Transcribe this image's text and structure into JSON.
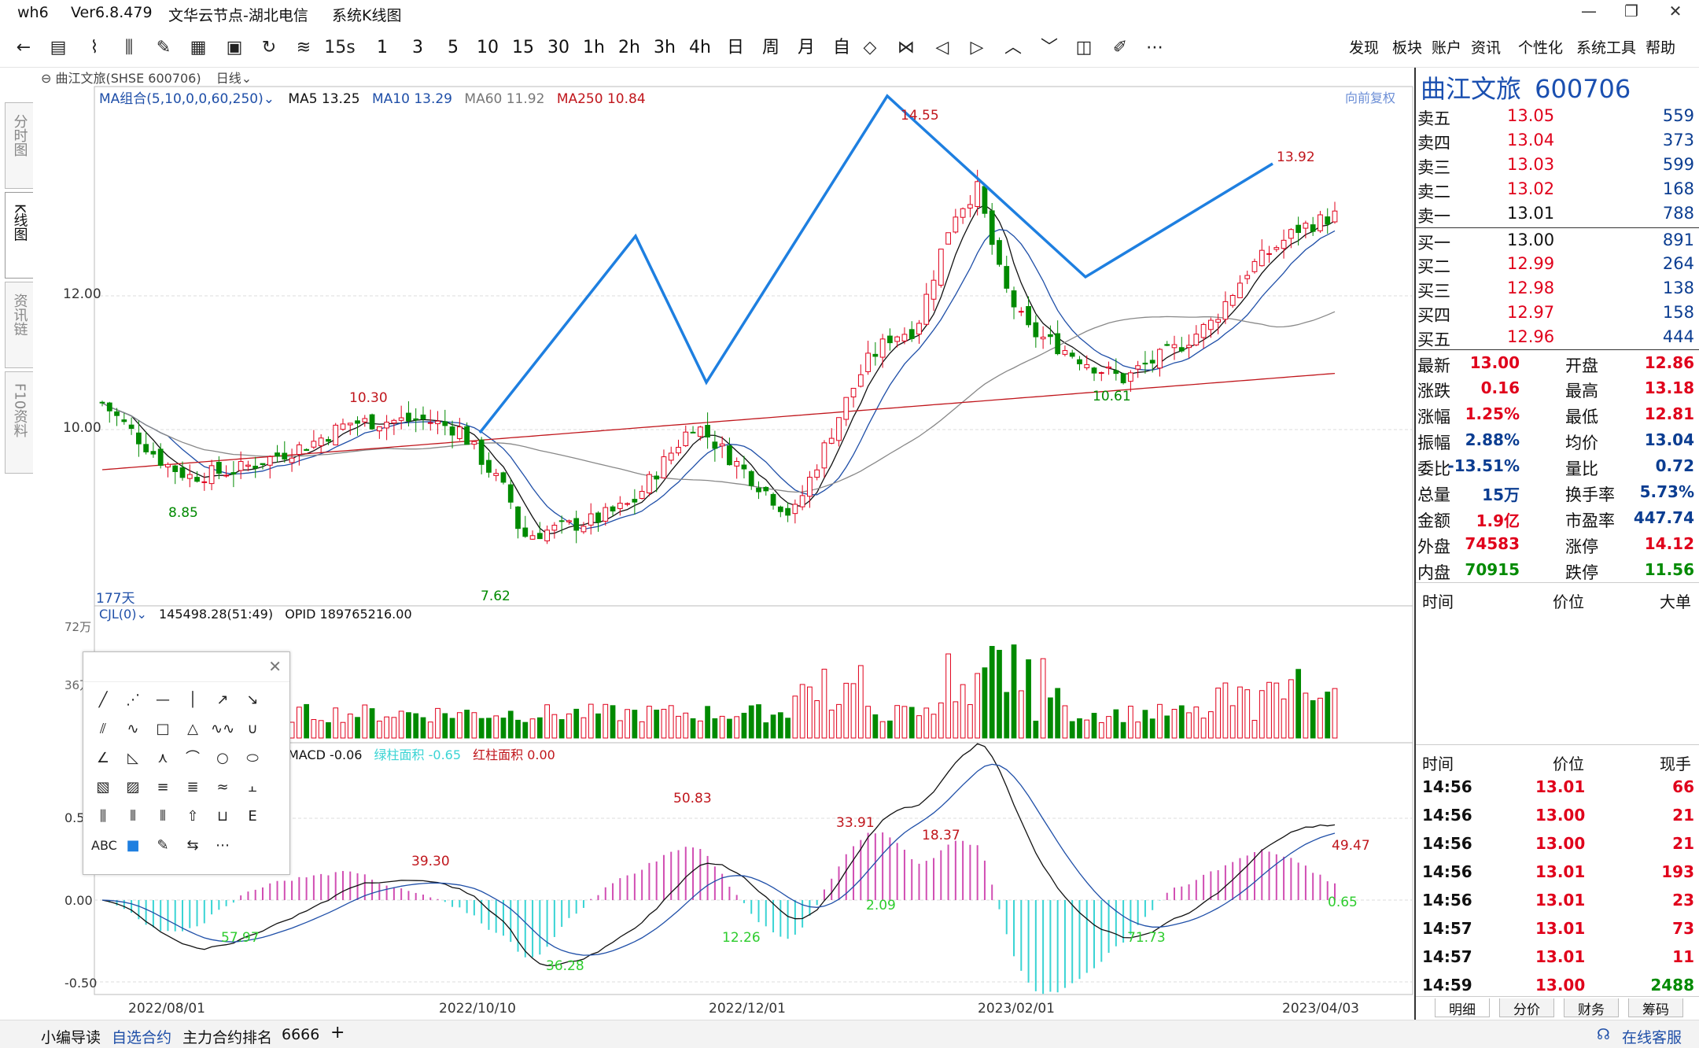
{
  "titlebar": {
    "app": "wh6",
    "version": "Ver6.8.479",
    "node": "文华云节点-湖北电信",
    "window": "系统K线图"
  },
  "toolbar": {
    "buttons": [
      "1",
      "3",
      "5",
      "10",
      "15",
      "30",
      "1h",
      "2h",
      "3h",
      "4h",
      "日",
      "周",
      "月",
      "自"
    ],
    "sec_label": "15s",
    "menus": [
      "发现",
      "板块",
      "账户",
      "资讯",
      "个性化",
      "系统工具",
      "帮助"
    ]
  },
  "left_tabs": [
    "分时图",
    "K线图",
    "资讯链",
    "F10资料"
  ],
  "chart": {
    "header": {
      "symbol": "曲江文旅(SHSE 600706)",
      "period": "日线"
    },
    "ma_label": "MA组合(5,10,0,0,60,250)",
    "ma5": "MA5 13.25",
    "ma10": "MA10 13.29",
    "ma60": "MA60 11.92",
    "ma250": "MA250 10.84",
    "adjust": "向前复权",
    "y_ticks": [
      "12.00",
      "10.00"
    ],
    "days": "177天",
    "annotations": [
      "14.55",
      "13.92",
      "10.30",
      "8.85",
      "7.62",
      "10.61"
    ],
    "colors": {
      "up": "#e0001b",
      "down": "#008a00",
      "pattern": "#1e7fe0",
      "ma5": "#111111",
      "ma10": "#1f4fa8",
      "ma60": "#888888",
      "ma250": "#c0161c"
    }
  },
  "volume": {
    "label": "CJL(0)",
    "value": "145498.28(51:49)",
    "opid": "OPID 189765216.00",
    "ticks": [
      "72万",
      "36万"
    ]
  },
  "macd": {
    "label": "MACD -0.06",
    "green_area": "绿柱面积 -0.65",
    "red_area": "红柱面积 0.00",
    "ticks": [
      "0.5",
      "0.00",
      "-0.50"
    ],
    "annotations": [
      "39.30",
      "50.83",
      "33.91",
      "18.37",
      "49.47",
      "57.97",
      "36.28",
      "12.26",
      "2.09",
      "71.73",
      "0.65"
    ]
  },
  "x_dates": [
    "2022/08/01",
    "2022/10/10",
    "2022/12/01",
    "2023/02/01",
    "2023/04/03"
  ],
  "right_panel": {
    "name": "曲江文旅",
    "code": "600706",
    "asks": [
      {
        "l": "卖五",
        "p": "13.05",
        "v": "559"
      },
      {
        "l": "卖四",
        "p": "13.04",
        "v": "373"
      },
      {
        "l": "卖三",
        "p": "13.03",
        "v": "599"
      },
      {
        "l": "卖二",
        "p": "13.02",
        "v": "168"
      },
      {
        "l": "卖一",
        "p": "13.01",
        "v": "788"
      }
    ],
    "bids": [
      {
        "l": "买一",
        "p": "13.00",
        "v": "891"
      },
      {
        "l": "买二",
        "p": "12.99",
        "v": "264"
      },
      {
        "l": "买三",
        "p": "12.98",
        "v": "138"
      },
      {
        "l": "买四",
        "p": "12.97",
        "v": "158"
      },
      {
        "l": "买五",
        "p": "12.96",
        "v": "444"
      }
    ],
    "stats": [
      {
        "l1": "最新",
        "v1": "13.00",
        "l2": "开盘",
        "v2": "12.86"
      },
      {
        "l1": "涨跌",
        "v1": "0.16",
        "l2": "最高",
        "v2": "13.18"
      },
      {
        "l1": "涨幅",
        "v1": "1.25%",
        "l2": "最低",
        "v2": "12.81"
      },
      {
        "l1": "振幅",
        "v1": "2.88%",
        "l2": "均价",
        "v2": "13.04"
      },
      {
        "l1": "委比",
        "v1": "-13.51%",
        "l2": "量比",
        "v2": "0.72"
      },
      {
        "l1": "总量",
        "v1": "15万",
        "l2": "换手率",
        "v2": "5.73%"
      },
      {
        "l1": "金额",
        "v1": "1.9亿",
        "l2": "市盈率",
        "v2": "447.74"
      },
      {
        "l1": "外盘",
        "v1": "74583",
        "l2": "涨停",
        "v2": "14.12"
      },
      {
        "l1": "内盘",
        "v1": "70915",
        "l2": "跌停",
        "v2": "11.56"
      }
    ],
    "t1_headers": [
      "时间",
      "价位",
      "大单"
    ],
    "t2_headers": [
      "时间",
      "价位",
      "现手"
    ],
    "ticks": [
      {
        "t": "14:56",
        "p": "13.01",
        "v": "66"
      },
      {
        "t": "14:56",
        "p": "13.00",
        "v": "21"
      },
      {
        "t": "14:56",
        "p": "13.00",
        "v": "21"
      },
      {
        "t": "14:56",
        "p": "13.01",
        "v": "193"
      },
      {
        "t": "14:56",
        "p": "13.01",
        "v": "23"
      },
      {
        "t": "14:57",
        "p": "13.01",
        "v": "73"
      },
      {
        "t": "14:57",
        "p": "13.01",
        "v": "11"
      },
      {
        "t": "14:59",
        "p": "13.00",
        "v": "2488"
      }
    ],
    "bottom_tabs": [
      "明细",
      "分价",
      "财务",
      "筹码"
    ]
  },
  "bottombar": {
    "items": [
      "小编导读",
      "自选合约",
      "主力合约排名",
      "6666",
      "+"
    ],
    "service": "在线客服"
  },
  "draw_panel": {
    "text_tool": "ABC"
  }
}
